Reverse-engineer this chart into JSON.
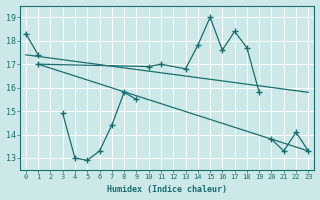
{
  "xlabel": "Humidex (Indice chaleur)",
  "xlim": [
    -0.5,
    23.5
  ],
  "ylim": [
    12.5,
    19.5
  ],
  "yticks": [
    13,
    14,
    15,
    16,
    17,
    18,
    19
  ],
  "xticks": [
    0,
    1,
    2,
    3,
    4,
    5,
    6,
    7,
    8,
    9,
    10,
    11,
    12,
    13,
    14,
    15,
    16,
    17,
    18,
    19,
    20,
    21,
    22,
    23
  ],
  "bg_color": "#cce8e8",
  "line_color": "#1a6e6e",
  "grid_color": "#aacccc",
  "line1_x": [
    0,
    1
  ],
  "line1_y": [
    18.3,
    17.4
  ],
  "line2_x": [
    1,
    10,
    11,
    13,
    14,
    15,
    16,
    17,
    18,
    19
  ],
  "line2_y": [
    17.0,
    16.9,
    17.0,
    16.8,
    17.8,
    19.0,
    17.6,
    18.4,
    17.7,
    15.8
  ],
  "line3_x": [
    3,
    4,
    5,
    6,
    7,
    8,
    9
  ],
  "line3_y": [
    14.9,
    13.0,
    12.9,
    13.3,
    14.4,
    15.8,
    15.5
  ],
  "line4_x": [
    20,
    21,
    22,
    23
  ],
  "line4_y": [
    13.8,
    13.3,
    14.1,
    13.3
  ],
  "trend1_x": [
    0,
    23
  ],
  "trend1_y": [
    17.4,
    15.8
  ],
  "trend2_x": [
    1,
    23
  ],
  "trend2_y": [
    17.0,
    13.3
  ],
  "marker": "+",
  "markersize": 4.0,
  "linewidth": 0.9
}
